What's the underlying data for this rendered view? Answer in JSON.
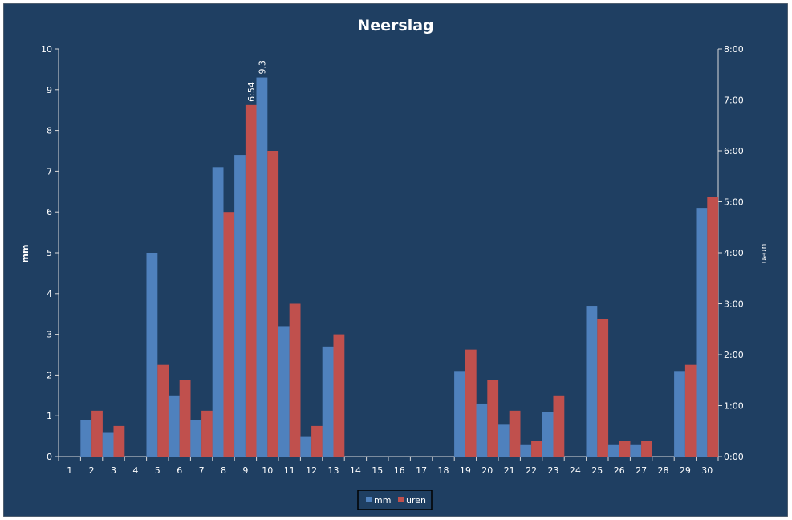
{
  "chart_data": {
    "type": "bar",
    "title": "Neerslag",
    "ylabel_left": "mm",
    "ylabel_right": "uren",
    "categories": [
      "1",
      "2",
      "3",
      "4",
      "5",
      "6",
      "7",
      "8",
      "9",
      "10",
      "11",
      "12",
      "13",
      "14",
      "15",
      "16",
      "17",
      "18",
      "19",
      "20",
      "21",
      "22",
      "23",
      "24",
      "25",
      "26",
      "27",
      "28",
      "29",
      "30"
    ],
    "ylim_left": [
      0,
      10
    ],
    "yticks_left": [
      "0",
      "1",
      "2",
      "3",
      "4",
      "5",
      "6",
      "7",
      "8",
      "9",
      "10"
    ],
    "ylim_right_minutes": [
      0,
      480
    ],
    "yticks_right": [
      "0:00",
      "1:00",
      "2:00",
      "3:00",
      "4:00",
      "5:00",
      "6:00",
      "7:00",
      "8:00"
    ],
    "series": [
      {
        "name": "mm",
        "axis": "left",
        "color": "#4f81bd",
        "values": [
          0,
          0.9,
          0.6,
          0,
          5.0,
          1.5,
          0.9,
          7.1,
          7.4,
          9.3,
          3.2,
          0.5,
          2.7,
          0,
          0,
          0,
          0,
          0,
          2.1,
          1.3,
          0.8,
          0.3,
          1.1,
          0,
          3.7,
          0.3,
          0.3,
          0,
          2.1,
          6.1
        ]
      },
      {
        "name": "uren",
        "axis": "right",
        "color": "#c0504d",
        "unit": "minutes",
        "values": [
          0,
          54,
          36,
          0,
          108,
          90,
          54,
          288,
          414,
          360,
          180,
          36,
          144,
          0,
          0,
          0,
          0,
          0,
          126,
          90,
          54,
          18,
          72,
          0,
          162,
          18,
          18,
          0,
          108,
          306
        ]
      }
    ],
    "data_labels": [
      {
        "series": "uren",
        "category": "9",
        "text": "6:54"
      },
      {
        "series": "mm",
        "category": "10",
        "text": "9,3"
      }
    ],
    "legend": {
      "position": "bottom",
      "entries": [
        "mm",
        "uren"
      ]
    },
    "grid": false,
    "background": "#1f3f62"
  }
}
